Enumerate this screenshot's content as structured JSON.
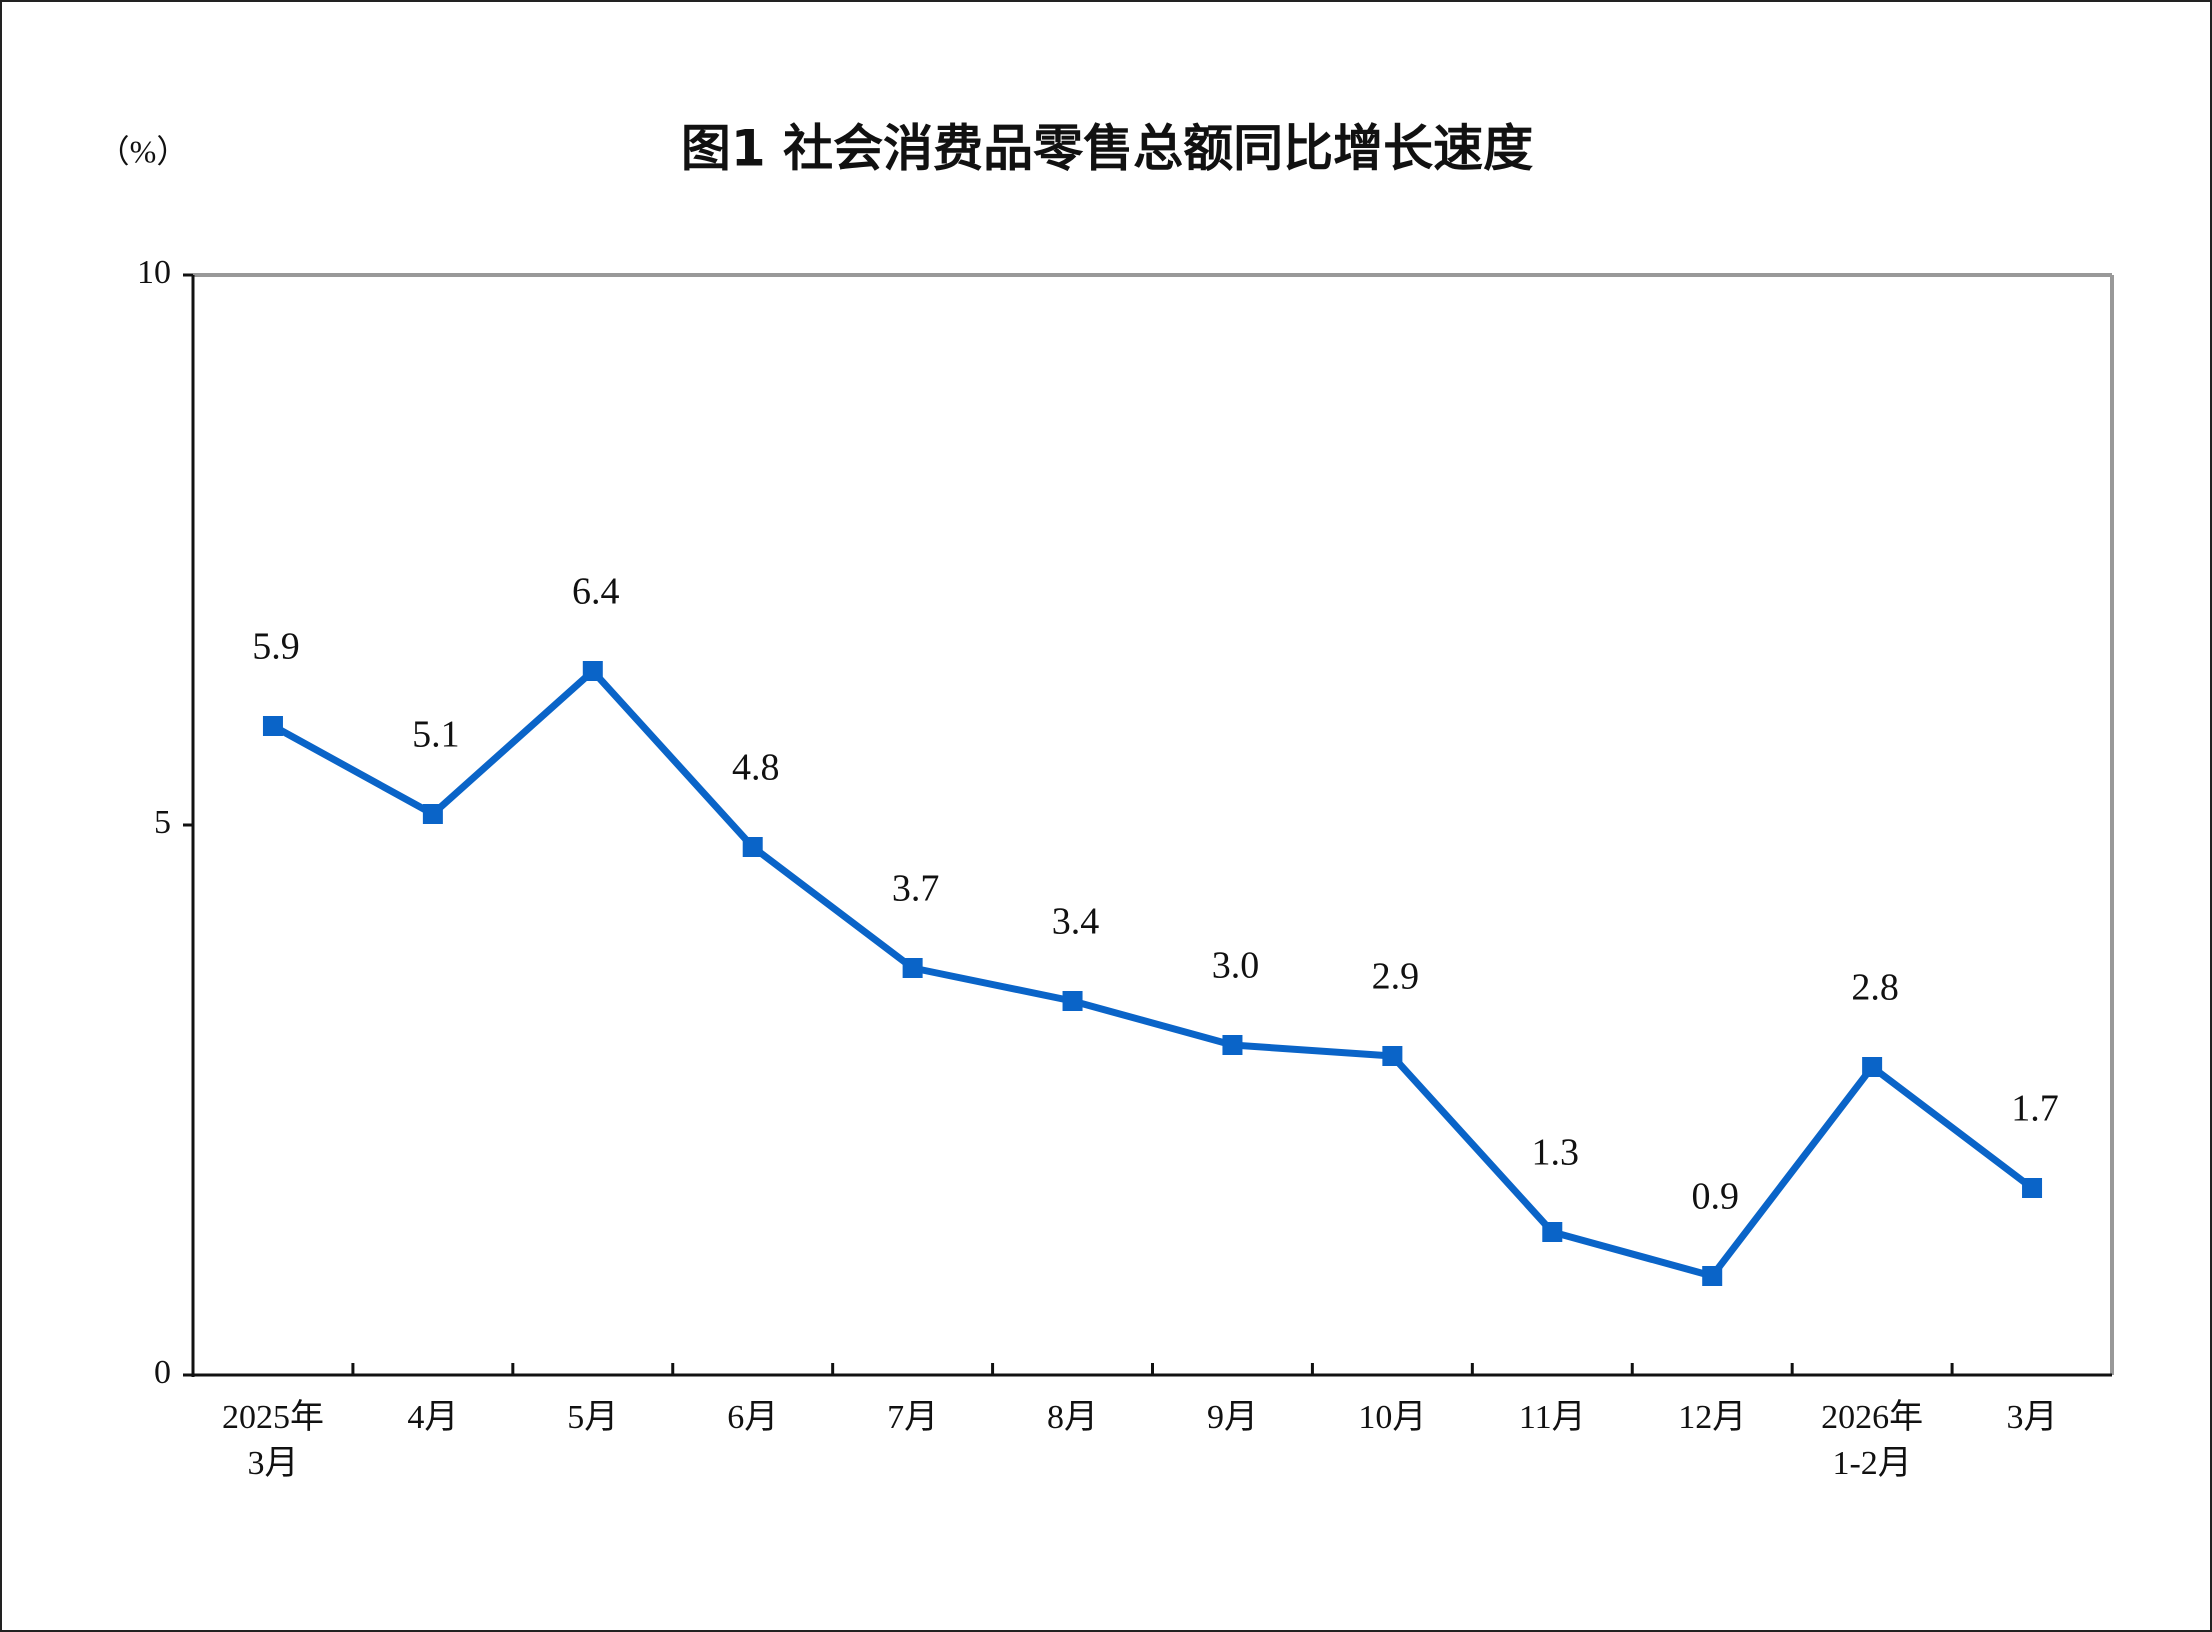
{
  "chart_data": {
    "type": "line",
    "title": "图1  社会消费品零售总额同比增长速度",
    "y_label": "（%）",
    "categories": [
      "2025年\n3月",
      "4月",
      "5月",
      "6月",
      "7月",
      "8月",
      "9月",
      "10月",
      "11月",
      "12月",
      "2026年\n1-2月",
      "3月"
    ],
    "series": [
      {
        "name": "社会消费品零售总额同比增长速度",
        "color": "#0a64c8",
        "values": [
          5.9,
          5.1,
          6.4,
          4.8,
          3.7,
          3.4,
          3.0,
          2.9,
          1.3,
          0.9,
          2.8,
          1.7
        ],
        "value_labels": [
          "5.9",
          "5.1",
          "6.4",
          "4.8",
          "3.7",
          "3.4",
          "3.0",
          "2.9",
          "1.3",
          "0.9",
          "2.8",
          "1.7"
        ]
      }
    ],
    "ylim": [
      0,
      10
    ],
    "yticks": [
      0,
      5,
      10
    ]
  }
}
